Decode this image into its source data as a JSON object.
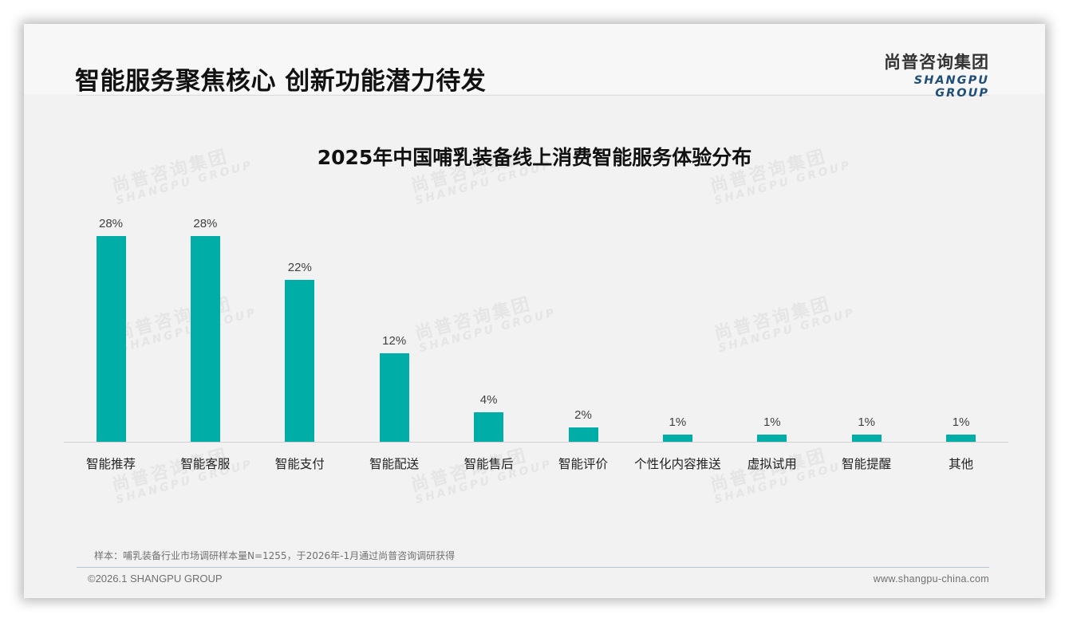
{
  "header": {
    "title": "智能服务聚焦核心 创新功能潜力待发",
    "logo_cn": "尚普咨询集团",
    "logo_en": "SHANGPU GROUP"
  },
  "watermark": {
    "cn": "尚普咨询集团",
    "en": "SHANGPU GROUP"
  },
  "colors": {
    "bar": "#00ada7",
    "logo_en": "#1f4e79",
    "slide_bg": "#f2f2f2"
  },
  "chart_data": {
    "type": "bar",
    "title": "2025年中国哺乳装备线上消费智能服务体验分布",
    "categories": [
      "智能推荐",
      "智能客服",
      "智能支付",
      "智能配送",
      "智能售后",
      "智能评价",
      "个性化内容推送",
      "虚拟试用",
      "智能提醒",
      "其他"
    ],
    "values": [
      28,
      28,
      22,
      12,
      4,
      2,
      1,
      1,
      1,
      1
    ],
    "value_labels": [
      "28%",
      "28%",
      "22%",
      "12%",
      "4%",
      "2%",
      "1%",
      "1%",
      "1%",
      "1%"
    ],
    "unit": "%",
    "xlabel": "",
    "ylabel": "",
    "grid": false,
    "legend": null
  },
  "footer": {
    "note": "样本：哺乳装备行业市场调研样本量N=1255，于2026年-1月通过尚普咨询调研获得",
    "copyright": "©2026.1 SHANGPU GROUP",
    "website": "www.shangpu-china.com"
  }
}
